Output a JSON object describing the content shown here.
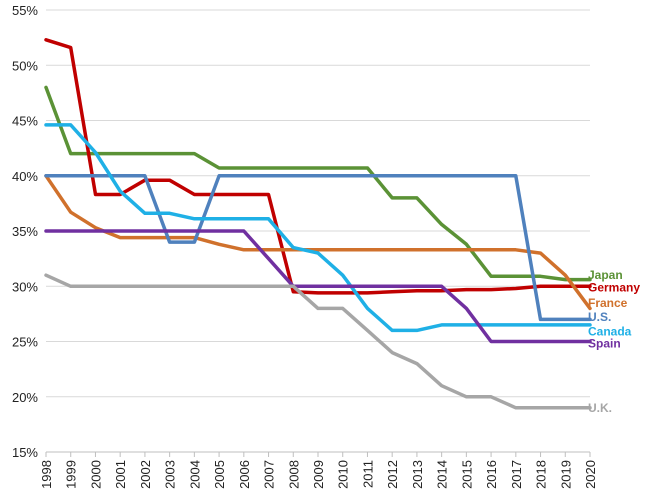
{
  "chart_data": {
    "type": "line",
    "title": "",
    "xlabel": "",
    "ylabel": "",
    "ylim": [
      15,
      55
    ],
    "xlim": [
      1998,
      2020
    ],
    "grid": "horizontal",
    "legend": "none (inline labels at right end of lines)",
    "y_ticks": [
      "15%",
      "20%",
      "25%",
      "30%",
      "35%",
      "40%",
      "45%",
      "50%",
      "55%"
    ],
    "x_ticks": [
      "1998",
      "1999",
      "2000",
      "2001",
      "2002",
      "2003",
      "2004",
      "2005",
      "2006",
      "2007",
      "2008",
      "2009",
      "2010",
      "2011",
      "2012",
      "2013",
      "2014",
      "2015",
      "2016",
      "2017",
      "2018",
      "2019",
      "2020"
    ],
    "series": [
      {
        "name": "Japan",
        "color": "#5b9236",
        "label_y": 31.0,
        "points": [
          [
            1998,
            48
          ],
          [
            1999,
            42
          ],
          [
            2000,
            42
          ],
          [
            2001,
            42
          ],
          [
            2002,
            42
          ],
          [
            2003,
            42
          ],
          [
            2004,
            42
          ],
          [
            2005,
            40.7
          ],
          [
            2006,
            40.7
          ],
          [
            2007,
            40.7
          ],
          [
            2008,
            40.7
          ],
          [
            2009,
            40.7
          ],
          [
            2010,
            40.7
          ],
          [
            2011,
            40.7
          ],
          [
            2012,
            38
          ],
          [
            2013,
            38
          ],
          [
            2014,
            35.6
          ],
          [
            2015,
            33.8
          ],
          [
            2016,
            30.9
          ],
          [
            2017,
            30.9
          ],
          [
            2018,
            30.9
          ],
          [
            2019,
            30.6
          ],
          [
            2020,
            30.6
          ]
        ]
      },
      {
        "name": "Germany",
        "color": "#c00000",
        "label_y": 29.9,
        "points": [
          [
            1998,
            52.3
          ],
          [
            1999,
            51.6
          ],
          [
            2000,
            38.3
          ],
          [
            2001,
            38.3
          ],
          [
            2002,
            39.6
          ],
          [
            2003,
            39.6
          ],
          [
            2004,
            38.3
          ],
          [
            2005,
            38.3
          ],
          [
            2006,
            38.3
          ],
          [
            2007,
            38.3
          ],
          [
            2008,
            29.5
          ],
          [
            2009,
            29.4
          ],
          [
            2010,
            29.4
          ],
          [
            2011,
            29.4
          ],
          [
            2012,
            29.5
          ],
          [
            2013,
            29.6
          ],
          [
            2014,
            29.6
          ],
          [
            2015,
            29.7
          ],
          [
            2016,
            29.7
          ],
          [
            2017,
            29.8
          ],
          [
            2018,
            30
          ],
          [
            2019,
            30
          ],
          [
            2020,
            30
          ]
        ]
      },
      {
        "name": "France",
        "color": "#d0712c",
        "label_y": 28.5,
        "points": [
          [
            1998,
            40
          ],
          [
            1999,
            36.7
          ],
          [
            2000,
            35.3
          ],
          [
            2001,
            34.4
          ],
          [
            2002,
            34.4
          ],
          [
            2003,
            34.4
          ],
          [
            2004,
            34.4
          ],
          [
            2005,
            33.8
          ],
          [
            2006,
            33.3
          ],
          [
            2007,
            33.3
          ],
          [
            2008,
            33.3
          ],
          [
            2009,
            33.3
          ],
          [
            2010,
            33.3
          ],
          [
            2011,
            33.3
          ],
          [
            2012,
            33.3
          ],
          [
            2013,
            33.3
          ],
          [
            2014,
            33.3
          ],
          [
            2015,
            33.3
          ],
          [
            2016,
            33.3
          ],
          [
            2017,
            33.3
          ],
          [
            2018,
            33
          ],
          [
            2019,
            31
          ],
          [
            2020,
            28
          ]
        ]
      },
      {
        "name": "U.S.",
        "color": "#4f81bd",
        "label_y": 27.2,
        "points": [
          [
            1998,
            40
          ],
          [
            1999,
            40
          ],
          [
            2000,
            40
          ],
          [
            2001,
            40
          ],
          [
            2002,
            40
          ],
          [
            2003,
            34
          ],
          [
            2004,
            34
          ],
          [
            2005,
            40
          ],
          [
            2006,
            40
          ],
          [
            2007,
            40
          ],
          [
            2008,
            40
          ],
          [
            2009,
            40
          ],
          [
            2010,
            40
          ],
          [
            2011,
            40
          ],
          [
            2012,
            40
          ],
          [
            2013,
            40
          ],
          [
            2014,
            40
          ],
          [
            2015,
            40
          ],
          [
            2016,
            40
          ],
          [
            2017,
            40
          ],
          [
            2018,
            27
          ],
          [
            2019,
            27
          ],
          [
            2020,
            27
          ]
        ]
      },
      {
        "name": "Canada",
        "color": "#1fb0e6",
        "label_y": 25.9,
        "points": [
          [
            1998,
            44.6
          ],
          [
            1999,
            44.6
          ],
          [
            2000,
            42.1
          ],
          [
            2001,
            38.6
          ],
          [
            2002,
            36.6
          ],
          [
            2003,
            36.6
          ],
          [
            2004,
            36.1
          ],
          [
            2005,
            36.1
          ],
          [
            2006,
            36.1
          ],
          [
            2007,
            36.1
          ],
          [
            2008,
            33.5
          ],
          [
            2009,
            33
          ],
          [
            2010,
            31
          ],
          [
            2011,
            28
          ],
          [
            2012,
            26
          ],
          [
            2013,
            26
          ],
          [
            2014,
            26.5
          ],
          [
            2015,
            26.5
          ],
          [
            2016,
            26.5
          ],
          [
            2017,
            26.5
          ],
          [
            2018,
            26.5
          ],
          [
            2019,
            26.5
          ],
          [
            2020,
            26.5
          ]
        ]
      },
      {
        "name": "Spain",
        "color": "#7030a0",
        "label_y": 24.8,
        "points": [
          [
            1998,
            35
          ],
          [
            1999,
            35
          ],
          [
            2000,
            35
          ],
          [
            2001,
            35
          ],
          [
            2002,
            35
          ],
          [
            2003,
            35
          ],
          [
            2004,
            35
          ],
          [
            2005,
            35
          ],
          [
            2006,
            35
          ],
          [
            2007,
            32.5
          ],
          [
            2008,
            30
          ],
          [
            2009,
            30
          ],
          [
            2010,
            30
          ],
          [
            2011,
            30
          ],
          [
            2012,
            30
          ],
          [
            2013,
            30
          ],
          [
            2014,
            30
          ],
          [
            2015,
            28
          ],
          [
            2016,
            25
          ],
          [
            2017,
            25
          ],
          [
            2018,
            25
          ],
          [
            2019,
            25
          ],
          [
            2020,
            25
          ]
        ]
      },
      {
        "name": "U.K.",
        "color": "#a6a6a6",
        "label_y": 19.0,
        "points": [
          [
            1998,
            31
          ],
          [
            1999,
            30
          ],
          [
            2000,
            30
          ],
          [
            2001,
            30
          ],
          [
            2002,
            30
          ],
          [
            2003,
            30
          ],
          [
            2004,
            30
          ],
          [
            2005,
            30
          ],
          [
            2006,
            30
          ],
          [
            2007,
            30
          ],
          [
            2008,
            30
          ],
          [
            2009,
            28
          ],
          [
            2010,
            28
          ],
          [
            2011,
            26
          ],
          [
            2012,
            24
          ],
          [
            2013,
            23
          ],
          [
            2014,
            21
          ],
          [
            2015,
            20
          ],
          [
            2016,
            20
          ],
          [
            2017,
            19
          ],
          [
            2018,
            19
          ],
          [
            2019,
            19
          ],
          [
            2020,
            19
          ]
        ]
      }
    ]
  }
}
